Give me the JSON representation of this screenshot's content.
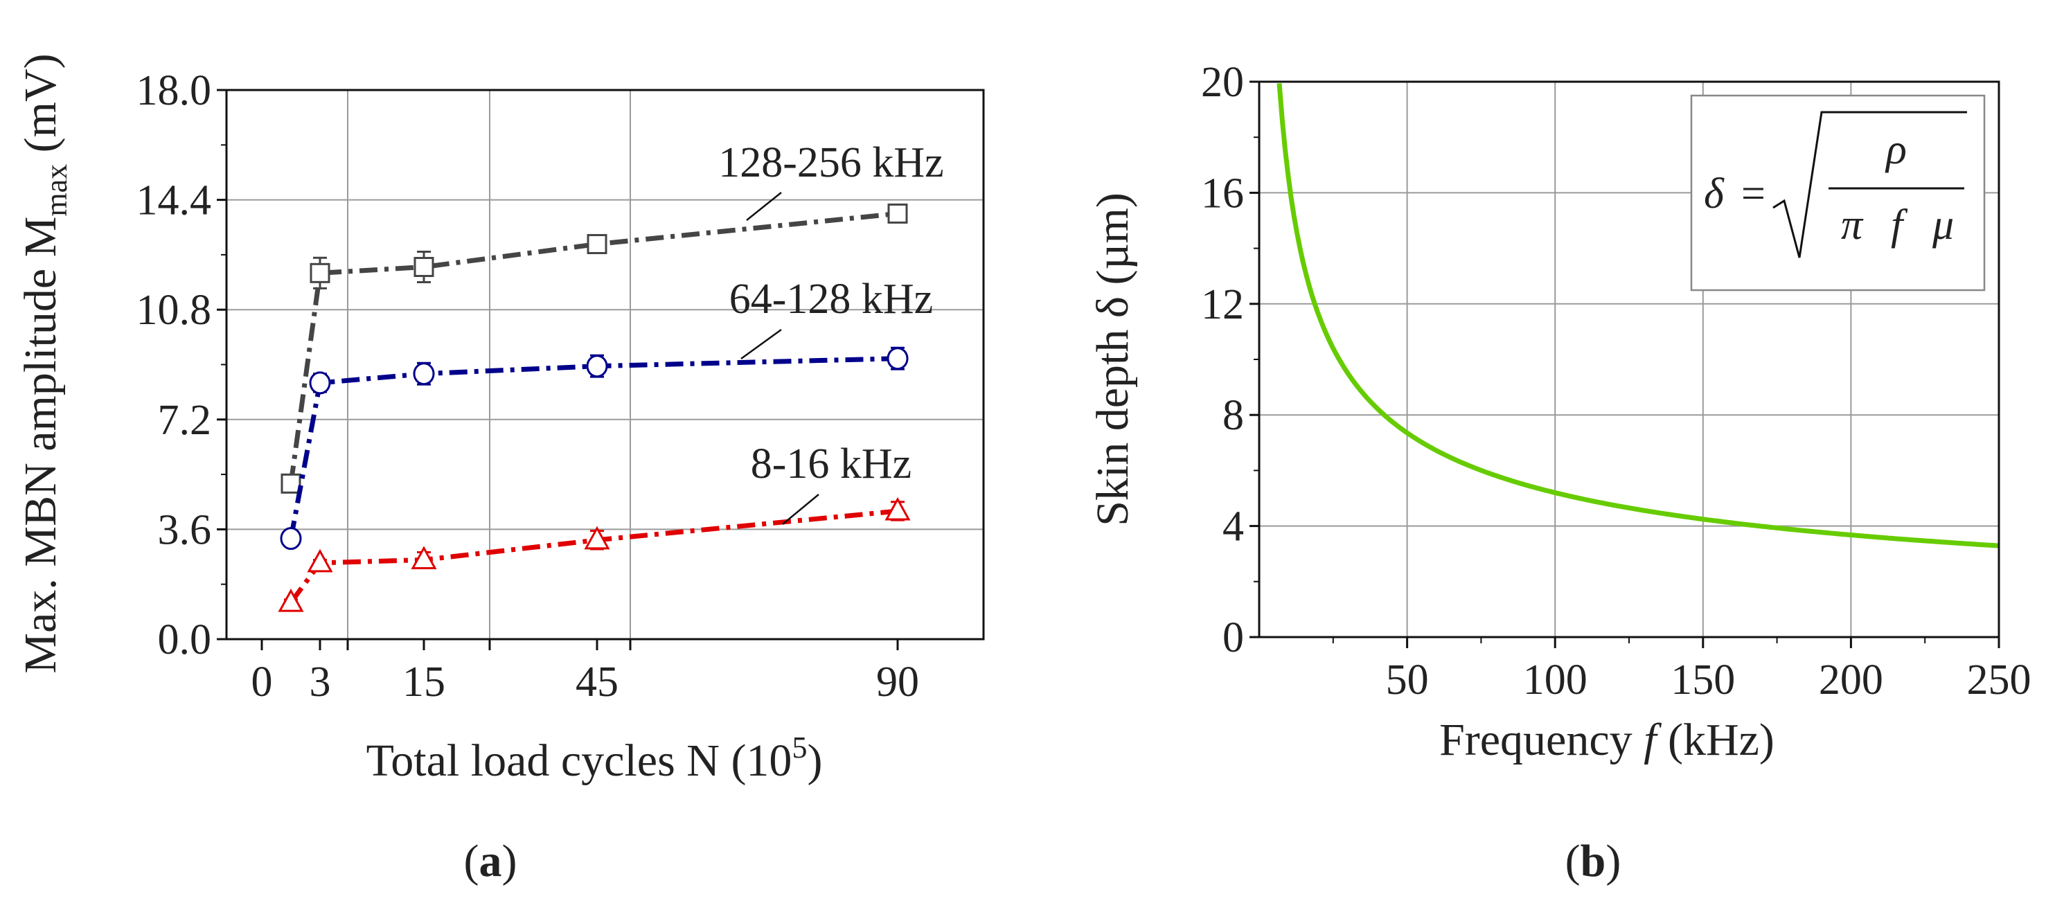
{
  "chart_data": [
    {
      "type": "line",
      "panel": "a",
      "caption": {
        "open": "(",
        "letter": "a",
        "close": ")"
      },
      "xlabel": {
        "main": "Total load cycles N (10",
        "sup": "5",
        "end": ")"
      },
      "ylabel": {
        "main": "Max. MBN amplitude M",
        "sub": "max",
        "end": " (mV)"
      },
      "ylim": [
        0,
        18
      ],
      "yticks": [
        "0.0",
        "3.6",
        "7.2",
        "10.8",
        "14.4",
        "18.0"
      ],
      "xticks": [
        "0",
        "3",
        "15",
        "45",
        "90"
      ],
      "grid": true,
      "series": [
        {
          "name": "128-256 kHz",
          "marker": "square",
          "color": "#454545",
          "x": [
            2,
            3,
            15,
            45,
            90
          ],
          "y": [
            5.1,
            12.0,
            12.2,
            12.95,
            13.95
          ],
          "err": [
            0.15,
            0.5,
            0.5,
            0.25,
            0.25
          ]
        },
        {
          "name": "64-128 kHz",
          "marker": "circle",
          "color": "#00008b",
          "x": [
            2,
            3,
            15,
            45,
            90
          ],
          "y": [
            3.3,
            8.4,
            8.7,
            8.95,
            9.2
          ],
          "err": [
            0.1,
            0.3,
            0.35,
            0.35,
            0.35
          ]
        },
        {
          "name": "8-16 kHz",
          "marker": "triangle",
          "color": "#e00000",
          "x": [
            2,
            3,
            15,
            45,
            90
          ],
          "y": [
            1.2,
            2.5,
            2.6,
            3.25,
            4.2
          ],
          "err": [
            0.1,
            0.1,
            0.25,
            0.3,
            0.3
          ]
        }
      ]
    },
    {
      "type": "line",
      "panel": "b",
      "caption": {
        "open": "(",
        "letter": "b",
        "close": ")"
      },
      "xlabel": {
        "main": "Frequency ",
        "italic": "f",
        "end": " (kHz)"
      },
      "ylabel": "Skin depth δ (µm)",
      "xlim": [
        0,
        250
      ],
      "ylim": [
        0,
        20
      ],
      "xticks": [
        "50",
        "100",
        "150",
        "200",
        "250"
      ],
      "yticks": [
        "0",
        "4",
        "8",
        "12",
        "16",
        "20"
      ],
      "grid": true,
      "series": [
        {
          "name": "skin depth",
          "color": "#66cc00",
          "formula": "δ = 52/√f",
          "x_start": 6.8,
          "x_end": 250
        }
      ],
      "legend_formula": {
        "lhs": "δ",
        "eq": "=",
        "num": "ρ",
        "den_pi": "π",
        "den_f": "f",
        "den_mu": "μ"
      }
    }
  ]
}
